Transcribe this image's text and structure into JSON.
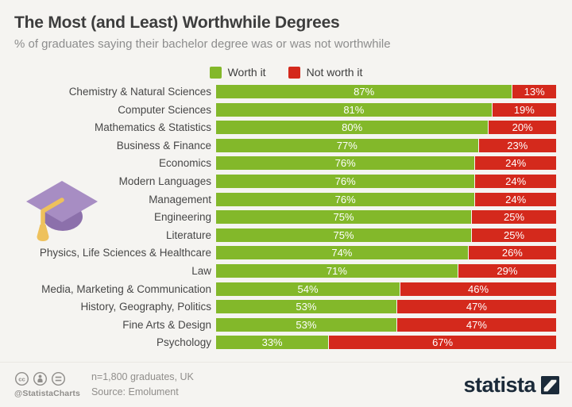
{
  "page": {
    "background": "#f5f4f1"
  },
  "header": {
    "title": "The Most (and Least) Worthwhile Degrees",
    "subtitle": "% of graduates saying their bachelor degree was or was not worthwhile"
  },
  "legend": {
    "items": [
      {
        "label": "Worth it",
        "color": "#83b82a"
      },
      {
        "label": "Not worth it",
        "color": "#d4291c"
      }
    ]
  },
  "chart_data": {
    "type": "bar",
    "orientation": "horizontal",
    "stacked": true,
    "value_suffix": "%",
    "xlim": [
      0,
      100
    ],
    "categories": [
      "Chemistry & Natural Sciences",
      "Computer Sciences",
      "Mathematics & Statistics",
      "Business & Finance",
      "Economics",
      "Modern Languages",
      "Management",
      "Engineering",
      "Literature",
      "Physics, Life Sciences & Healthcare",
      "Law",
      "Media, Marketing & Communication",
      "History, Geography, Politics",
      "Fine Arts & Design",
      "Psychology"
    ],
    "series": [
      {
        "name": "Worth it",
        "color": "#83b82a",
        "values": [
          87,
          81,
          80,
          77,
          76,
          76,
          76,
          75,
          75,
          74,
          71,
          54,
          53,
          53,
          33
        ]
      },
      {
        "name": "Not worth it",
        "color": "#d4291c",
        "values": [
          13,
          19,
          20,
          23,
          24,
          24,
          24,
          25,
          25,
          26,
          29,
          46,
          47,
          47,
          67
        ]
      }
    ]
  },
  "illustration": {
    "name": "graduation-cap",
    "top_color": "#a78dc3",
    "cap_color": "#8c70ab",
    "tassel_color": "#eec15c"
  },
  "footer": {
    "license_icons": [
      "cc-icon",
      "attribution-icon",
      "equal-icon"
    ],
    "handle": "@StatistaCharts",
    "note_line1": "n=1,800 graduates, UK",
    "note_line2": "Source: Emolument",
    "brand": "statista",
    "brand_color": "#1b2a39",
    "icon_color": "#908e8b"
  }
}
